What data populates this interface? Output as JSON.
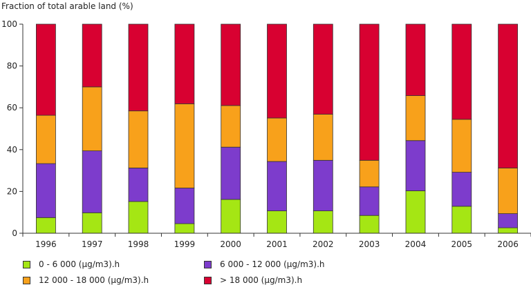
{
  "chart_data": {
    "type": "bar",
    "stacked": true,
    "title": "",
    "ylabel": "Fraction of total arable land (%)",
    "xlabel": "",
    "ylim": [
      0,
      100
    ],
    "yticks": [
      0,
      20,
      40,
      60,
      80,
      100
    ],
    "grid": false,
    "legend_position": "bottom",
    "categories": [
      "1996",
      "1997",
      "1998",
      "1999",
      "2000",
      "2001",
      "2002",
      "2003",
      "2004",
      "2005",
      "2006"
    ],
    "series": [
      {
        "name": "0 - 6 000  (µg/m3).h",
        "color": "#a5e614",
        "values": [
          7.5,
          9.8,
          15.2,
          4.6,
          16.2,
          10.7,
          10.7,
          8.5,
          20.3,
          12.9,
          2.6
        ]
      },
      {
        "name": "6 000 - 12 000  (µg/m3).h",
        "color": "#7d3ccc",
        "values": [
          25.8,
          29.6,
          16.0,
          17.0,
          25.0,
          23.6,
          24.2,
          13.7,
          24.0,
          16.3,
          6.8
        ]
      },
      {
        "name": "12 000 - 18 000 (µg/m3).h",
        "color": "#f8a11b",
        "values": [
          23.1,
          30.6,
          27.3,
          40.3,
          19.9,
          20.8,
          22.0,
          12.7,
          21.5,
          25.3,
          21.8
        ]
      },
      {
        "name": "> 18 000 (µg/m3).h",
        "color": "#d80131",
        "values": [
          43.6,
          30.0,
          41.5,
          38.1,
          38.9,
          44.9,
          43.1,
          65.1,
          34.2,
          45.5,
          68.8
        ]
      }
    ]
  }
}
